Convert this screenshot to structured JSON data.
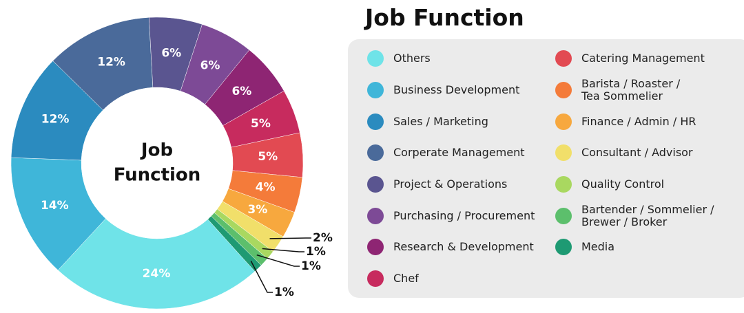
{
  "chart_data": {
    "type": "donut",
    "title": "Job Function",
    "center_label_lines": [
      "Job",
      "Function"
    ],
    "categories": [
      "Others",
      "Business Development",
      "Sales / Marketing",
      "Corperate Management",
      "Project & Operations",
      "Purchasing / Procurement",
      "Research & Development",
      "Chef",
      "Catering Management",
      "Barista / Roaster /\nTea Sommelier",
      "Finance / Admin / HR",
      "Consultant / Advisor",
      "Quality Control",
      "Bartender / Sommelier /\nBrewer / Broker",
      "Media"
    ],
    "values": [
      24,
      14,
      12,
      12,
      6,
      6,
      6,
      5,
      5,
      4,
      3,
      2,
      1,
      1,
      1
    ],
    "value_labels": [
      "24%",
      "14%",
      "12%",
      "12%",
      "6%",
      "6%",
      "6%",
      "5%",
      "5%",
      "4%",
      "3%",
      "2%",
      "1%",
      "1%",
      "1%"
    ],
    "colors": [
      "#6fe3e8",
      "#3fb6d9",
      "#2b8bbf",
      "#4a6a9a",
      "#5a5590",
      "#7d4a96",
      "#8e2573",
      "#c72b5e",
      "#e24a52",
      "#f47b3a",
      "#f7a83e",
      "#f1df6a",
      "#a9d860",
      "#5cbf6c",
      "#1e9a73"
    ]
  }
}
